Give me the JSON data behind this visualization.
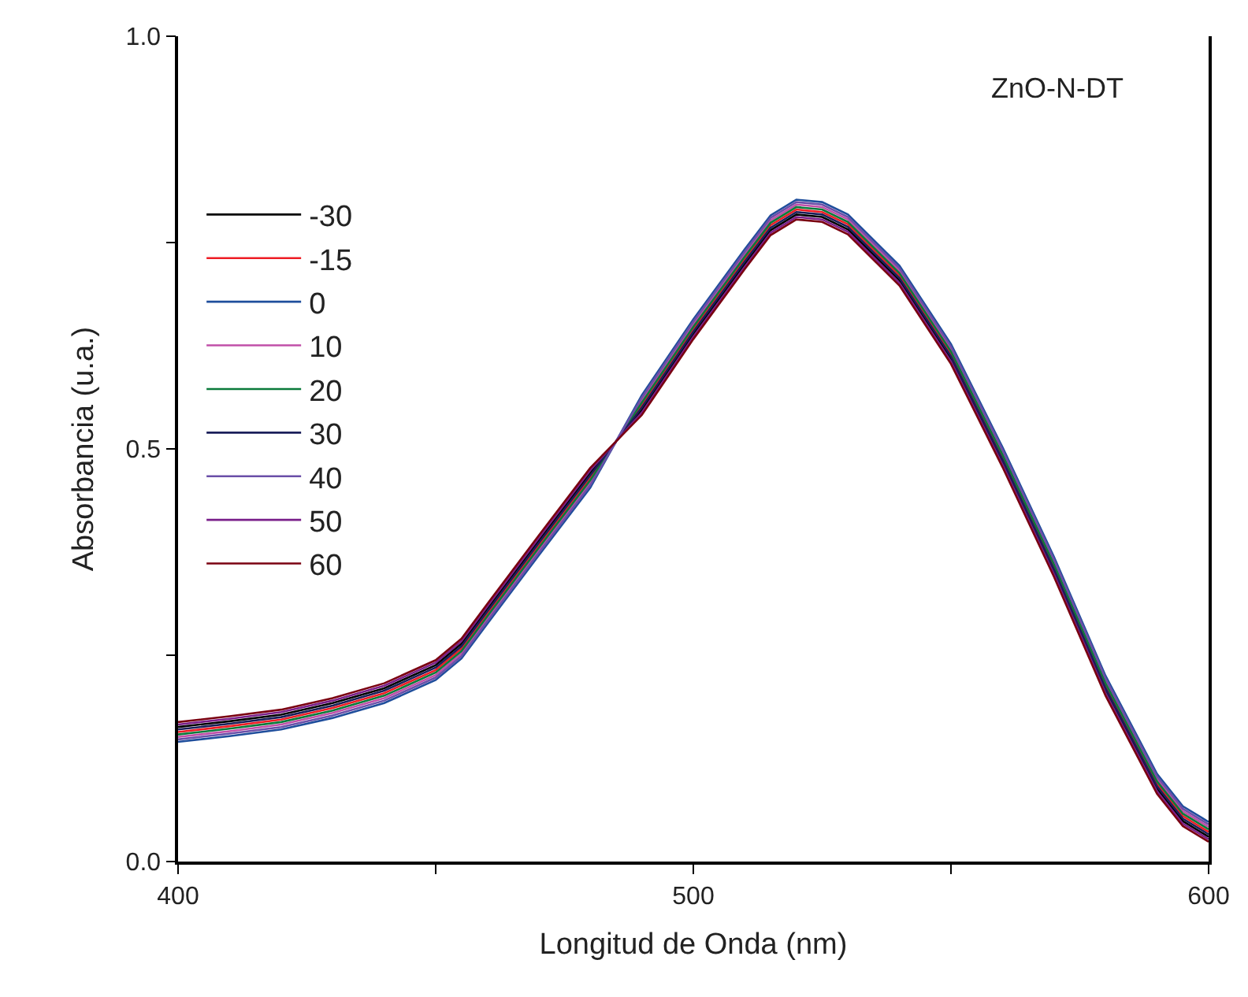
{
  "chart_data": {
    "type": "line",
    "xlabel": "Longitud de Onda (nm)",
    "ylabel": "Absorbancia (u.a.)",
    "annotations": [
      "ZnO-N-DT"
    ],
    "x": [
      400,
      410,
      420,
      430,
      440,
      450,
      455,
      460,
      470,
      480,
      490,
      500,
      510,
      515,
      520,
      525,
      530,
      540,
      550,
      560,
      570,
      580,
      590,
      595,
      600
    ],
    "xlim": [
      400,
      600
    ],
    "xticks": [
      400,
      {
        "value": 450,
        "label": null
      },
      500,
      {
        "value": 550,
        "label": null
      },
      600
    ],
    "ylim": [
      0,
      1
    ],
    "yticks": [
      {
        "value": 0,
        "label": "0.0"
      },
      {
        "value": 0.25,
        "label": null
      },
      0.5,
      {
        "value": 0.75,
        "label": null
      },
      {
        "value": 1,
        "label": "1.0"
      }
    ],
    "legend": "left",
    "marker": "none",
    "line_style": "solid",
    "series": [
      {
        "name": "-30",
        "color": "#000000",
        "values": [
          0.163,
          0.17,
          0.178,
          0.192,
          0.21,
          0.238,
          0.264,
          0.306,
          0.389,
          0.471,
          0.547,
          0.639,
          0.724,
          0.765,
          0.784,
          0.781,
          0.766,
          0.704,
          0.609,
          0.484,
          0.351,
          0.207,
          0.088,
          0.049,
          0.03
        ]
      },
      {
        "name": "-15",
        "color": "#ee1c24",
        "values": [
          0.157,
          0.164,
          0.172,
          0.186,
          0.204,
          0.232,
          0.258,
          0.3,
          0.383,
          0.465,
          0.553,
          0.645,
          0.73,
          0.771,
          0.79,
          0.787,
          0.772,
          0.71,
          0.615,
          0.49,
          0.357,
          0.213,
          0.094,
          0.055,
          0.036
        ]
      },
      {
        "name": "0",
        "color": "#1f4e9c",
        "values": [
          0.145,
          0.152,
          0.16,
          0.174,
          0.192,
          0.22,
          0.246,
          0.288,
          0.371,
          0.453,
          0.565,
          0.657,
          0.742,
          0.783,
          0.802,
          0.799,
          0.784,
          0.722,
          0.627,
          0.502,
          0.369,
          0.225,
          0.106,
          0.067,
          0.048
        ]
      },
      {
        "name": "10",
        "color": "#c04fa8",
        "values": [
          0.151,
          0.158,
          0.166,
          0.18,
          0.198,
          0.226,
          0.252,
          0.294,
          0.377,
          0.459,
          0.559,
          0.651,
          0.736,
          0.777,
          0.796,
          0.793,
          0.778,
          0.716,
          0.621,
          0.496,
          0.363,
          0.219,
          0.1,
          0.061,
          0.042
        ]
      },
      {
        "name": "20",
        "color": "#0a7a3a",
        "values": [
          0.154,
          0.161,
          0.169,
          0.183,
          0.201,
          0.229,
          0.255,
          0.297,
          0.38,
          0.462,
          0.556,
          0.648,
          0.733,
          0.774,
          0.793,
          0.79,
          0.775,
          0.713,
          0.618,
          0.493,
          0.36,
          0.216,
          0.097,
          0.058,
          0.039
        ]
      },
      {
        "name": "30",
        "color": "#1a1f5a",
        "values": [
          0.16,
          0.167,
          0.175,
          0.189,
          0.207,
          0.235,
          0.261,
          0.303,
          0.386,
          0.468,
          0.55,
          0.642,
          0.727,
          0.768,
          0.787,
          0.784,
          0.769,
          0.707,
          0.612,
          0.487,
          0.354,
          0.21,
          0.091,
          0.052,
          0.033
        ]
      },
      {
        "name": "40",
        "color": "#6a4fa8",
        "values": [
          0.148,
          0.155,
          0.163,
          0.177,
          0.195,
          0.223,
          0.249,
          0.291,
          0.374,
          0.456,
          0.562,
          0.654,
          0.739,
          0.78,
          0.799,
          0.796,
          0.781,
          0.719,
          0.624,
          0.499,
          0.366,
          0.222,
          0.103,
          0.064,
          0.045
        ]
      },
      {
        "name": "50",
        "color": "#7a1f8a",
        "values": [
          0.166,
          0.173,
          0.181,
          0.195,
          0.213,
          0.241,
          0.267,
          0.309,
          0.392,
          0.474,
          0.544,
          0.636,
          0.721,
          0.762,
          0.781,
          0.778,
          0.763,
          0.701,
          0.606,
          0.481,
          0.348,
          0.204,
          0.085,
          0.046,
          0.027
        ]
      },
      {
        "name": "60",
        "color": "#7a0010",
        "values": [
          0.169,
          0.176,
          0.184,
          0.198,
          0.216,
          0.244,
          0.27,
          0.312,
          0.395,
          0.477,
          0.541,
          0.633,
          0.718,
          0.759,
          0.778,
          0.775,
          0.76,
          0.698,
          0.603,
          0.478,
          0.345,
          0.201,
          0.082,
          0.043,
          0.024
        ]
      }
    ]
  }
}
